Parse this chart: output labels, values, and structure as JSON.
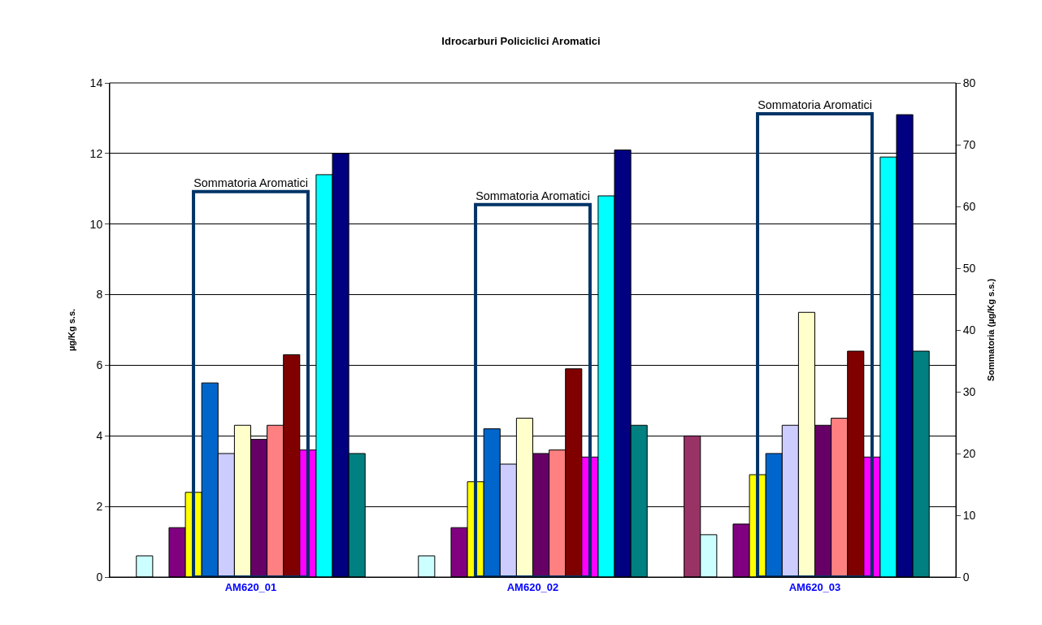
{
  "chart_data": {
    "type": "bar",
    "title": "Idrocarburi Policiclici Aromatici",
    "ylabel": "µg/Kg s.s.",
    "y2label": "Sommatoria (µg/Kg s.s.)",
    "categories": [
      "AM620_01",
      "AM620_02",
      "AM620_03"
    ],
    "ylim": [
      0,
      14
    ],
    "yticks": [
      0,
      2,
      4,
      6,
      8,
      10,
      12,
      14
    ],
    "y2lim": [
      0,
      80
    ],
    "y2ticks": [
      0,
      10,
      20,
      30,
      40,
      50,
      60,
      70,
      80
    ],
    "grid": "y",
    "legend": false,
    "series": [
      {
        "color": "#993366",
        "values": [
          null,
          null,
          4.0
        ]
      },
      {
        "color": "#ccffff",
        "values": [
          0.6,
          0.6,
          1.2
        ]
      },
      {
        "color": "#ffffff",
        "values": [
          null,
          null,
          null
        ]
      },
      {
        "color": "#800080",
        "values": [
          1.4,
          1.4,
          1.5
        ]
      },
      {
        "color": "#ffff00",
        "values": [
          2.4,
          2.7,
          2.9
        ]
      },
      {
        "color": "#0066cc",
        "values": [
          5.5,
          4.2,
          3.5
        ]
      },
      {
        "color": "#ccccff",
        "values": [
          3.5,
          3.2,
          4.3
        ]
      },
      {
        "color": "#ffffcc",
        "values": [
          4.3,
          4.5,
          7.5
        ]
      },
      {
        "color": "#660066",
        "values": [
          3.9,
          3.5,
          4.3
        ]
      },
      {
        "color": "#ff8080",
        "values": [
          4.3,
          3.6,
          4.5
        ]
      },
      {
        "color": "#800000",
        "values": [
          6.3,
          5.9,
          6.4
        ]
      },
      {
        "color": "#ff00ff",
        "values": [
          3.6,
          3.4,
          3.4
        ]
      },
      {
        "color": "#00ffff",
        "values": [
          11.4,
          10.8,
          11.9
        ]
      },
      {
        "color": "#000080",
        "values": [
          12.0,
          12.1,
          13.1
        ]
      },
      {
        "color": "#008080",
        "values": [
          3.5,
          4.3,
          6.4
        ]
      },
      {
        "color": "#ffffff",
        "values": [
          null,
          null,
          null
        ]
      },
      {
        "name": "Sommatoria Aromatici",
        "color": "#003366",
        "axis": "y2",
        "values": [
          62.4,
          60.3,
          75.0
        ]
      }
    ]
  }
}
